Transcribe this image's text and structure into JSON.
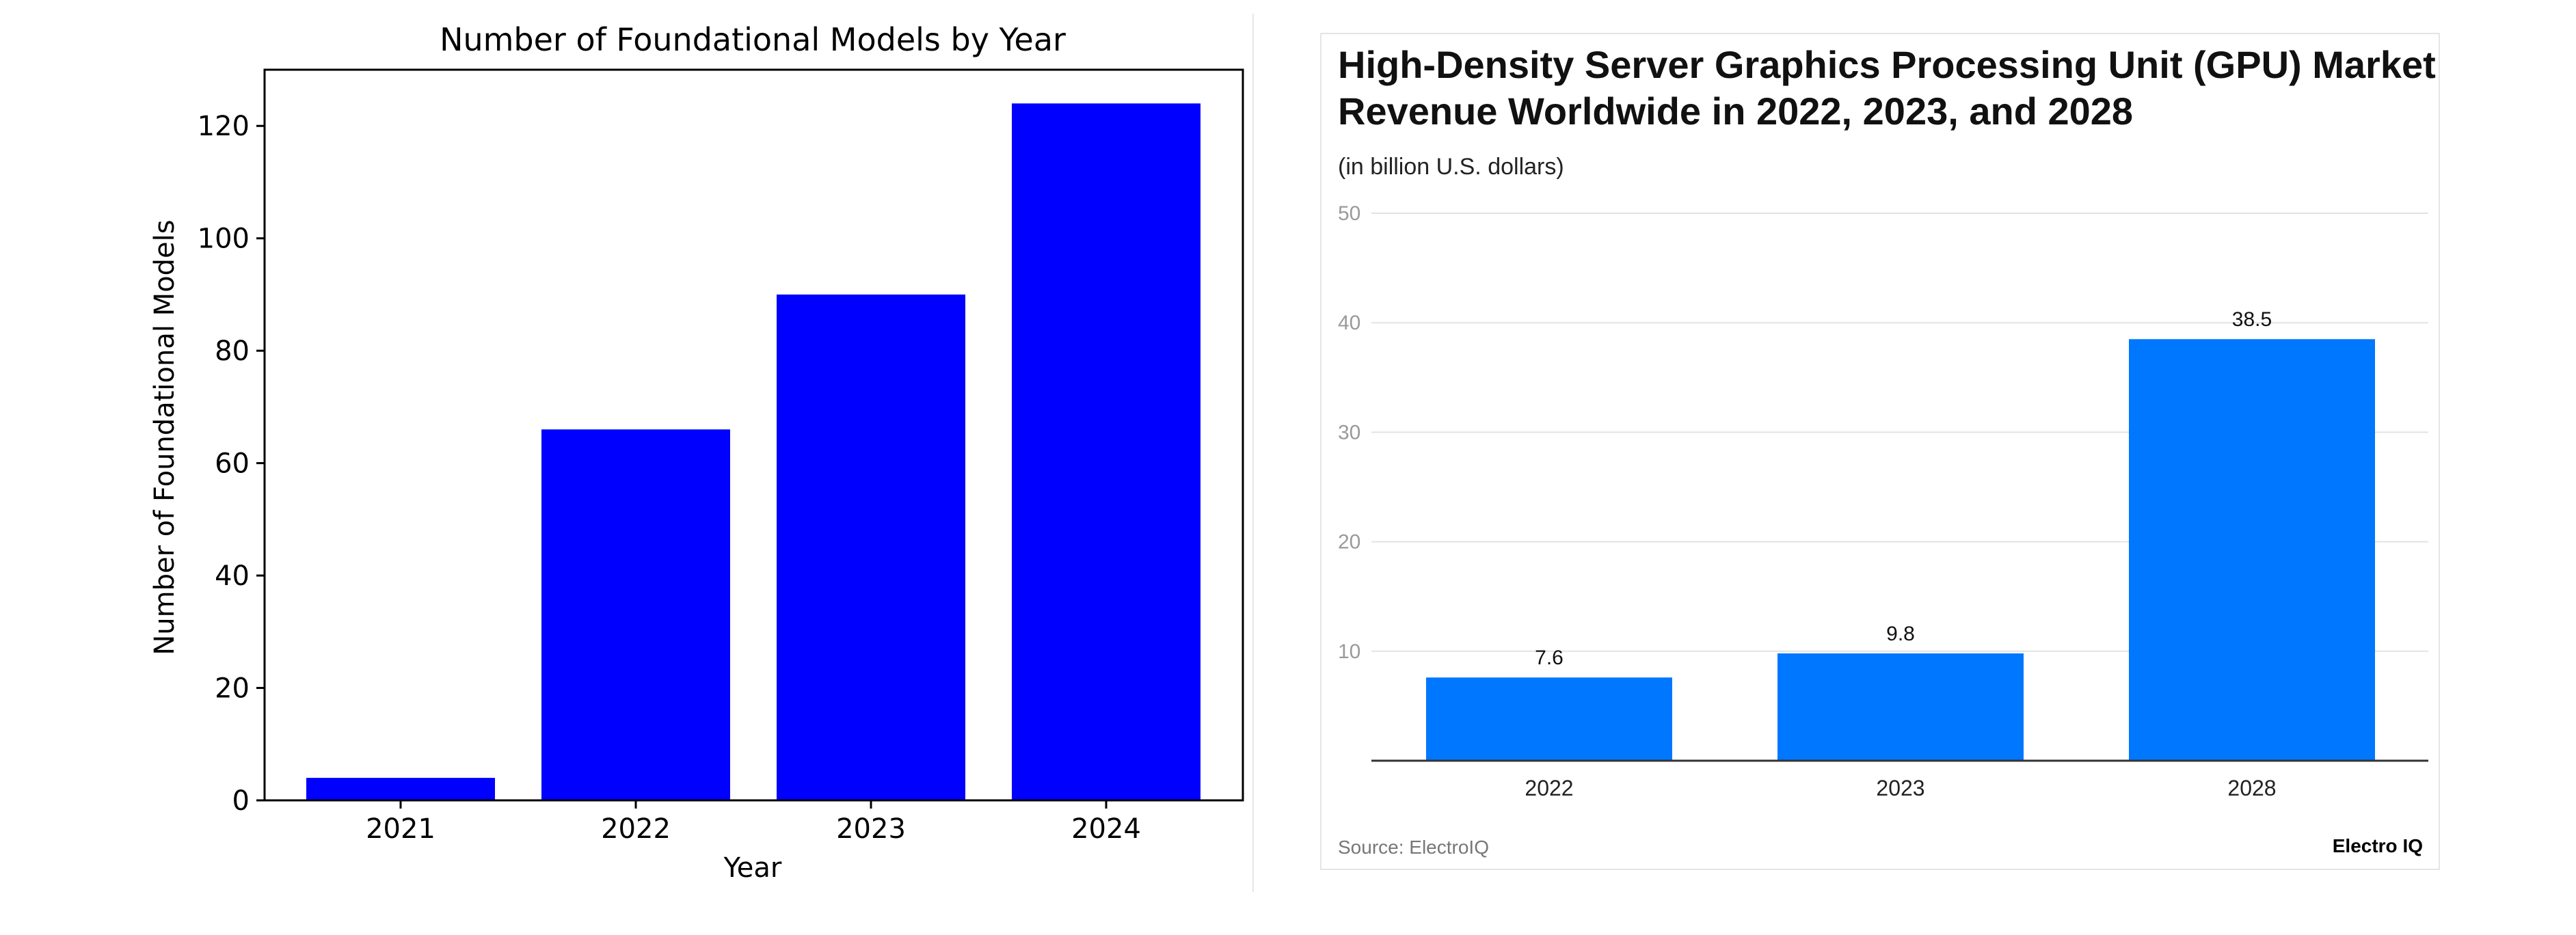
{
  "chart_data": [
    {
      "type": "bar",
      "title": "Number of Foundational Models by Year",
      "xlabel": "Year",
      "ylabel": "Number of Foundational Models",
      "categories": [
        "2021",
        "2022",
        "2023",
        "2024"
      ],
      "values": [
        4,
        66,
        90,
        124
      ],
      "ylim": [
        0,
        130
      ],
      "yticks": [
        "0",
        "20",
        "40",
        "60",
        "80",
        "100",
        "120"
      ],
      "grid": false,
      "bar_color": "#0000FF"
    },
    {
      "type": "bar",
      "title": "High-Density Server Graphics Processing Unit (GPU) Market Revenue Worldwide in 2022, 2023, and 2028",
      "title_line1": "High-Density Server Graphics Processing Unit (GPU) Market",
      "title_line2": "Revenue Worldwide in 2022, 2023, and 2028",
      "subtitle": "(in billion U.S. dollars)",
      "categories": [
        "2022",
        "2023",
        "2028"
      ],
      "values": [
        7.6,
        9.8,
        38.5
      ],
      "value_labels": [
        "7.6",
        "9.8",
        "38.5"
      ],
      "ylim": [
        0,
        50
      ],
      "yticks": [
        "10",
        "20",
        "30",
        "40",
        "50"
      ],
      "grid": true,
      "bar_color": "#0077FF",
      "source": "Source: ElectroIQ",
      "brand": "Electro IQ"
    }
  ]
}
